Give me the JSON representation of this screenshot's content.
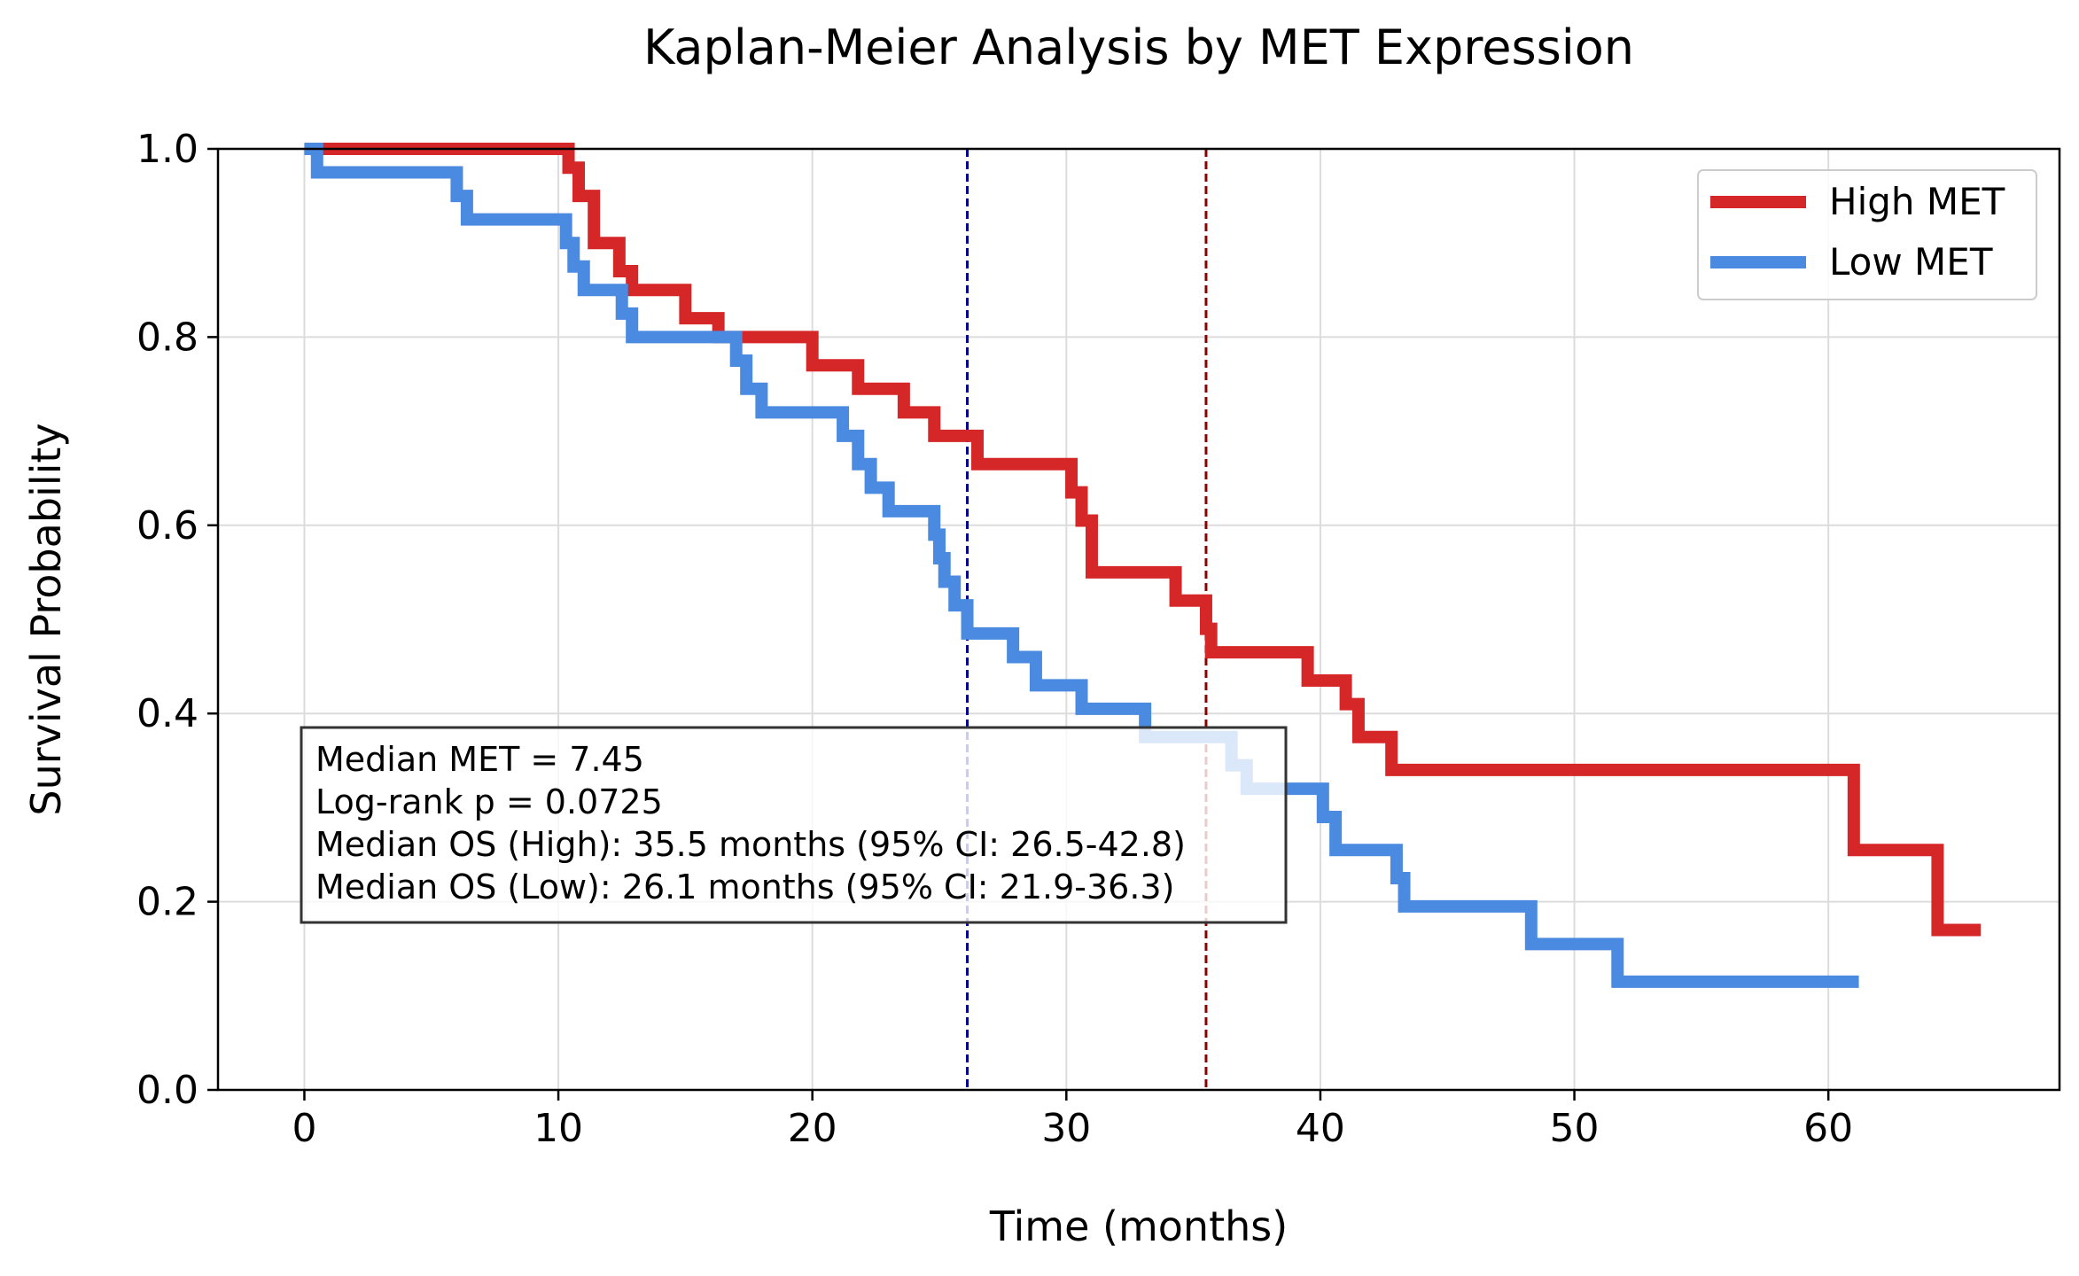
{
  "chart_data": {
    "type": "line",
    "title": "Kaplan-Meier Analysis by MET Expression",
    "xlabel": "Time (months)",
    "ylabel": "Survival Probability",
    "xlim": [
      -3.4,
      69.1
    ],
    "ylim": [
      0.0,
      1.0
    ],
    "x_ticks": [
      0,
      10,
      20,
      30,
      40,
      50,
      60
    ],
    "y_ticks": [
      0.0,
      0.2,
      0.4,
      0.6,
      0.8,
      1.0
    ],
    "x_tick_labels": [
      "0",
      "10",
      "20",
      "30",
      "40",
      "50",
      "60"
    ],
    "y_tick_labels": [
      "0.0",
      "0.2",
      "0.4",
      "0.6",
      "0.8",
      "1.0"
    ],
    "grid": true,
    "legend_position": "top-right",
    "series": [
      {
        "name": "High MET",
        "color": "#d62728",
        "step": "post",
        "x": [
          0,
          10.4,
          10.8,
          11.4,
          12.4,
          12.9,
          15.0,
          16.3,
          20.0,
          21.8,
          23.6,
          24.8,
          26.5,
          30.2,
          30.6,
          31.0,
          34.3,
          35.5,
          35.7,
          39.5,
          41.0,
          41.5,
          42.8,
          61.0,
          64.3,
          66.0
        ],
        "y": [
          1.0,
          0.98,
          0.95,
          0.9,
          0.87,
          0.85,
          0.82,
          0.8,
          0.77,
          0.745,
          0.72,
          0.695,
          0.665,
          0.635,
          0.605,
          0.55,
          0.52,
          0.49,
          0.465,
          0.435,
          0.41,
          0.375,
          0.34,
          0.255,
          0.17,
          0.17
        ]
      },
      {
        "name": "Low MET",
        "color": "#4a8ae0",
        "step": "post",
        "x": [
          0,
          0.5,
          6.0,
          6.4,
          10.3,
          10.6,
          11.0,
          12.5,
          12.9,
          17.0,
          17.4,
          18.0,
          18.7,
          21.2,
          21.8,
          22.3,
          23.0,
          24.8,
          25.0,
          25.2,
          25.6,
          26.1,
          27.9,
          28.8,
          30.6,
          33.1,
          36.5,
          37.1,
          40.1,
          40.6,
          43.0,
          43.3,
          48.3,
          51.7,
          61.2
        ],
        "y": [
          1.0,
          0.975,
          0.95,
          0.925,
          0.9,
          0.875,
          0.85,
          0.825,
          0.8,
          0.775,
          0.745,
          0.72,
          0.72,
          0.695,
          0.665,
          0.64,
          0.615,
          0.59,
          0.565,
          0.54,
          0.515,
          0.485,
          0.46,
          0.43,
          0.405,
          0.375,
          0.345,
          0.32,
          0.29,
          0.255,
          0.225,
          0.195,
          0.155,
          0.115,
          0.115
        ]
      }
    ],
    "median_lines": [
      {
        "x": 26.1,
        "color": "#00008b",
        "style": "dashed"
      },
      {
        "x": 35.5,
        "color": "#8b0000",
        "style": "dashed"
      }
    ],
    "annotations": [
      "Median MET = 7.45",
      "Log-rank p = 0.0725",
      "Median OS (High): 35.5 months (95% CI: 26.5-42.8)",
      "Median OS (Low): 26.1 months (95% CI: 21.9-36.3)"
    ]
  }
}
